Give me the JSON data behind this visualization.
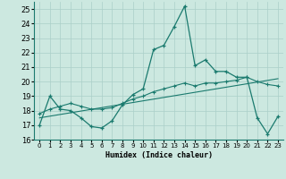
{
  "xlabel": "Humidex (Indice chaleur)",
  "xlim": [
    -0.5,
    23.5
  ],
  "ylim": [
    16,
    25.5
  ],
  "yticks": [
    16,
    17,
    18,
    19,
    20,
    21,
    22,
    23,
    24,
    25
  ],
  "xticks": [
    0,
    1,
    2,
    3,
    4,
    5,
    6,
    7,
    8,
    9,
    10,
    11,
    12,
    13,
    14,
    15,
    16,
    17,
    18,
    19,
    20,
    21,
    22,
    23
  ],
  "bg_color": "#cce8e0",
  "line_color": "#1a7a6e",
  "grid_color": "#aacfc8",
  "series1_x": [
    0,
    1,
    2,
    3,
    4,
    5,
    6,
    7,
    8,
    9,
    10,
    11,
    12,
    13,
    14,
    15,
    16,
    17,
    18,
    19,
    20,
    21,
    22,
    23
  ],
  "series1_y": [
    17.0,
    19.0,
    18.1,
    18.0,
    17.5,
    16.9,
    16.8,
    17.3,
    18.4,
    19.1,
    19.5,
    22.2,
    22.5,
    23.8,
    25.2,
    21.1,
    21.5,
    20.7,
    20.7,
    20.3,
    20.3,
    17.5,
    16.4,
    17.6
  ],
  "series2_x": [
    0,
    1,
    2,
    3,
    4,
    5,
    6,
    7,
    8,
    9,
    10,
    11,
    12,
    13,
    14,
    15,
    16,
    17,
    18,
    19,
    20,
    21,
    22,
    23
  ],
  "series2_y": [
    17.8,
    18.1,
    18.3,
    18.5,
    18.3,
    18.1,
    18.1,
    18.2,
    18.5,
    18.8,
    19.0,
    19.3,
    19.5,
    19.7,
    19.9,
    19.7,
    19.9,
    19.9,
    20.0,
    20.1,
    20.3,
    20.0,
    19.8,
    19.7
  ],
  "series3_x": [
    0,
    23
  ],
  "series3_y": [
    17.5,
    20.2
  ]
}
